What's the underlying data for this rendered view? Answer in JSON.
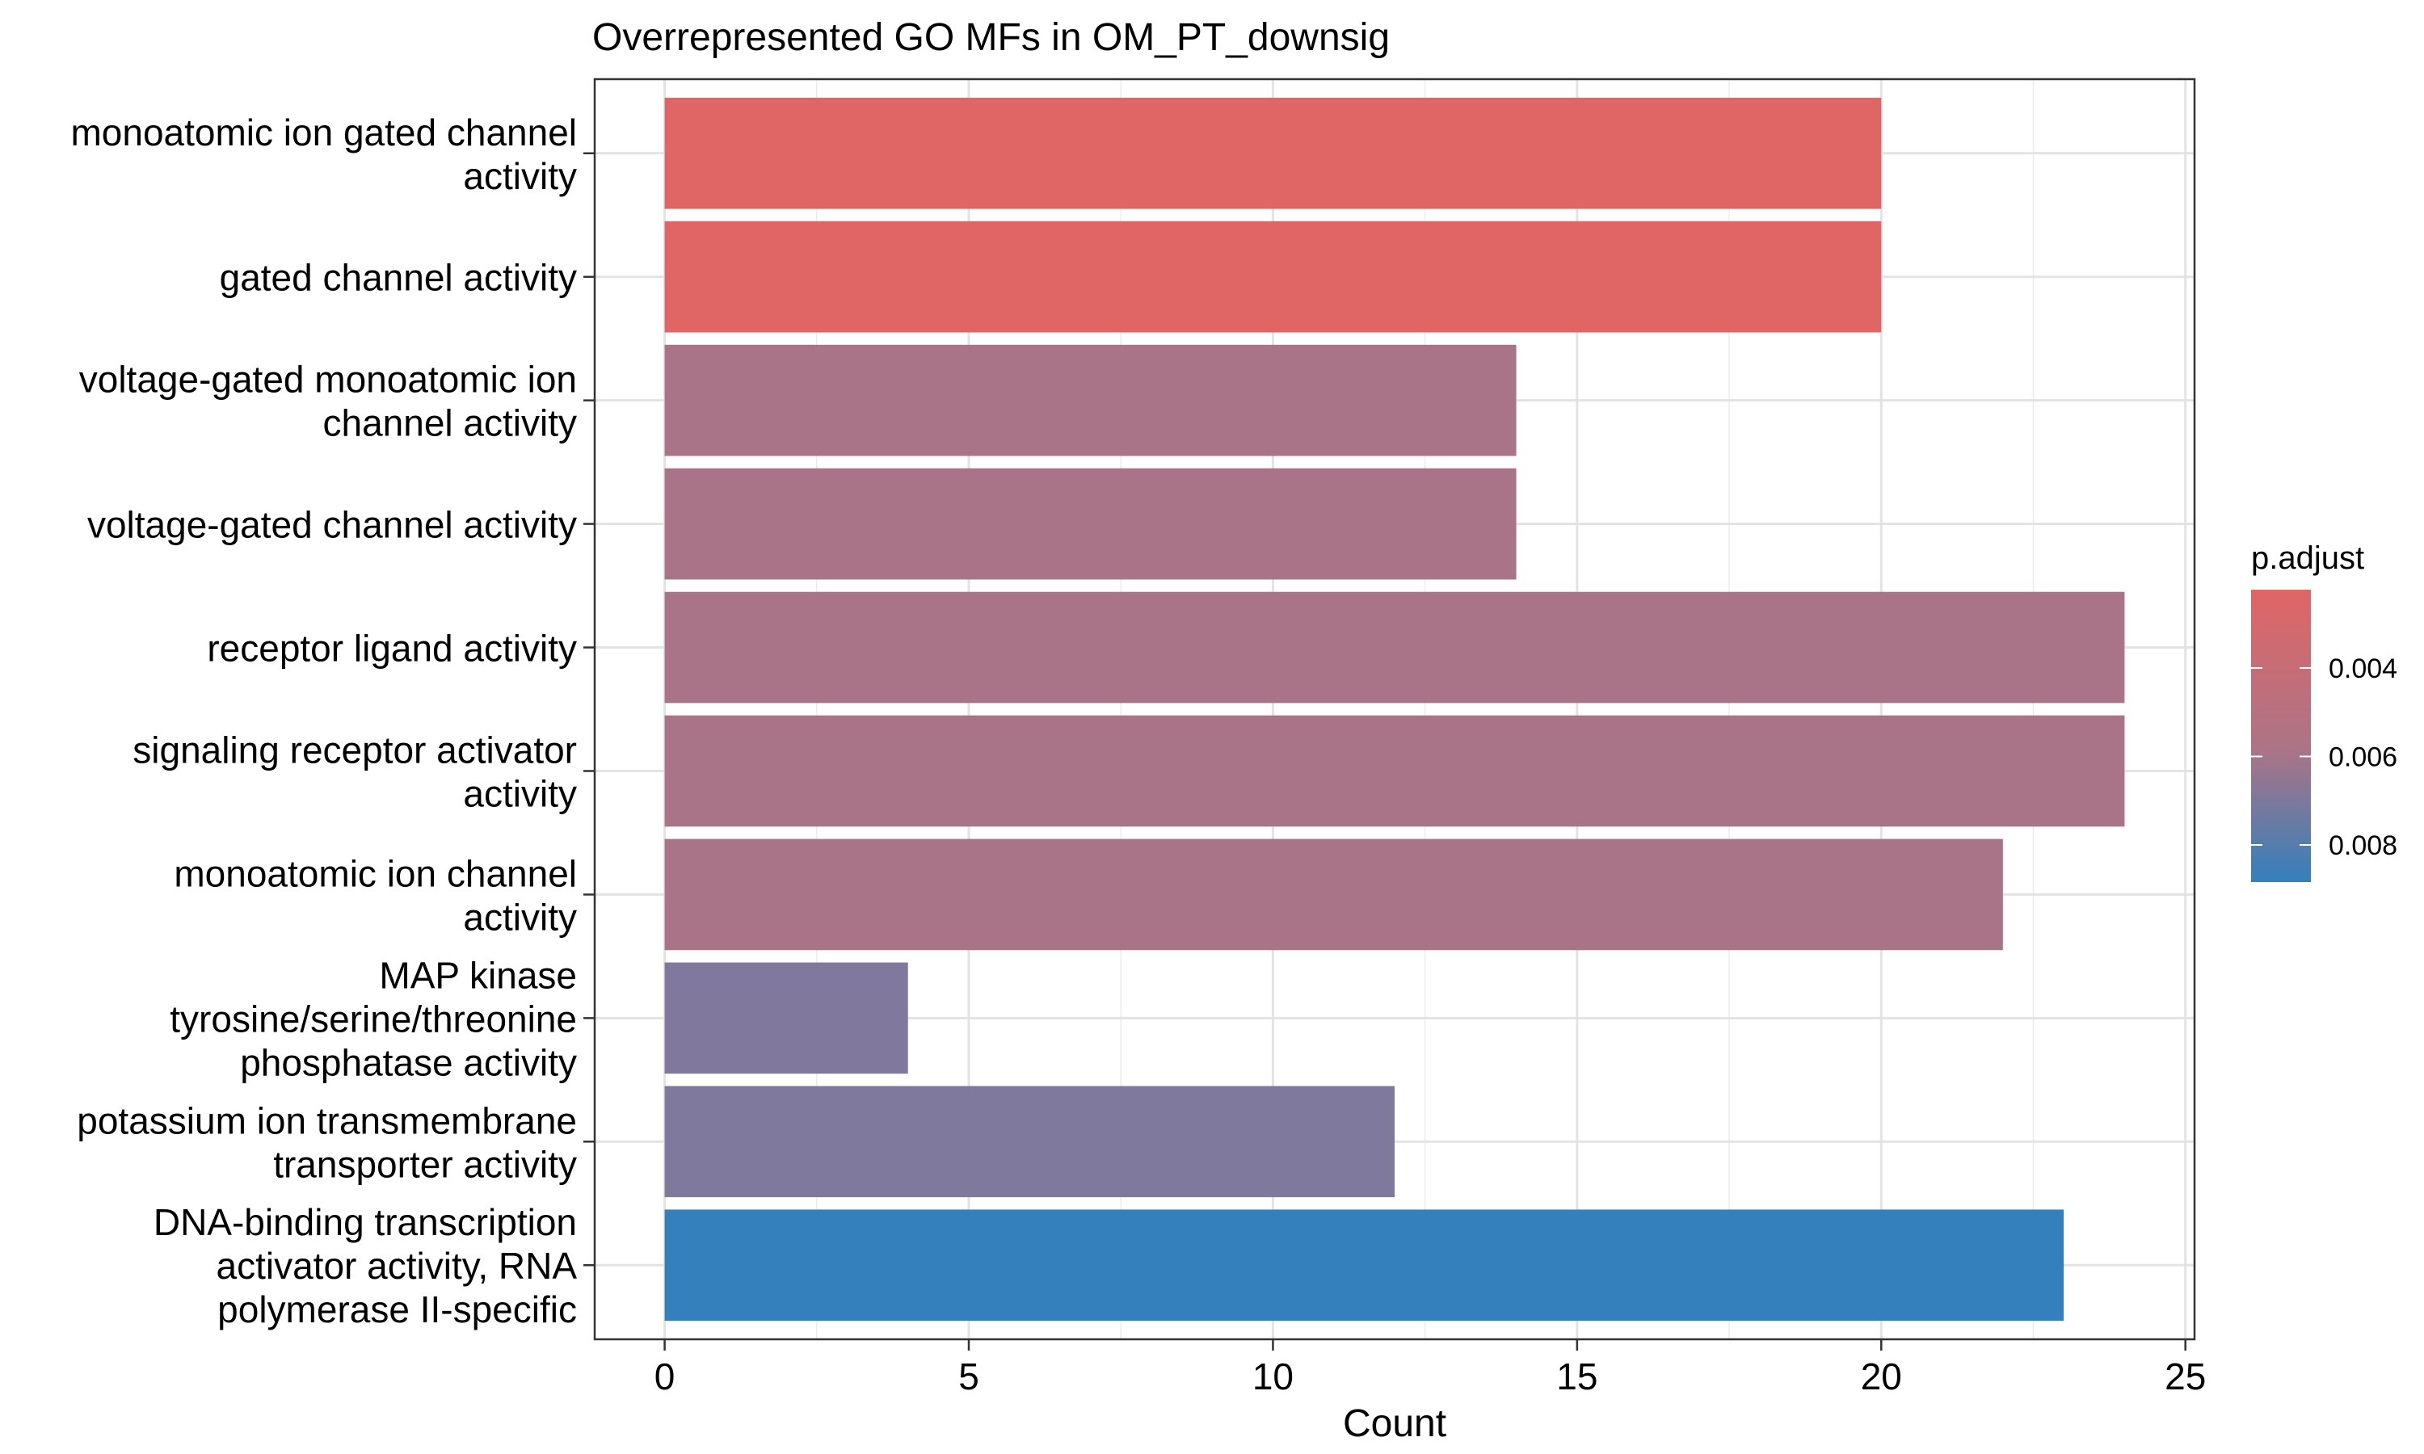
{
  "chart_data": {
    "type": "bar",
    "orientation": "horizontal",
    "title": "Overrepresented GO MFs in OM_PT_downsig",
    "xlabel": "Count",
    "ylabel": "",
    "xlim": [
      -1.15,
      25.15
    ],
    "xticks": [
      0,
      5,
      10,
      15,
      20,
      25
    ],
    "grid": true,
    "legend_position": "right",
    "categories": [
      [
        "monoatomic ion gated channel",
        "activity"
      ],
      [
        "gated channel activity"
      ],
      [
        "voltage-gated monoatomic ion",
        "channel activity"
      ],
      [
        "voltage-gated channel activity"
      ],
      [
        "receptor ligand activity"
      ],
      [
        "signaling receptor activator",
        "activity"
      ],
      [
        "monoatomic ion channel",
        "activity"
      ],
      [
        "MAP kinase",
        "tyrosine/serine/threonine",
        "phosphatase activity"
      ],
      [
        "potassium ion transmembrane",
        "transporter activity"
      ],
      [
        "DNA-binding transcription",
        "activator activity, RNA",
        "polymerase II-specific"
      ]
    ],
    "values": [
      20,
      20,
      14,
      14,
      24,
      24,
      22,
      4,
      12,
      23
    ],
    "colors": [
      "#e06666",
      "#e06666",
      "#a97488",
      "#a97488",
      "#aa7488",
      "#aa7488",
      "#aa7488",
      "#81799d",
      "#80799e",
      "#3480bc"
    ],
    "colorbar": {
      "title": "p.adjust",
      "ticks": [
        "0.004",
        "0.006",
        "0.008"
      ],
      "tick_values": [
        0.004,
        0.006,
        0.008
      ],
      "range": [
        0.00223,
        0.00884
      ],
      "color_low": "#e06666",
      "color_mid": "#ab7487",
      "color_high": "#3380bc"
    }
  }
}
